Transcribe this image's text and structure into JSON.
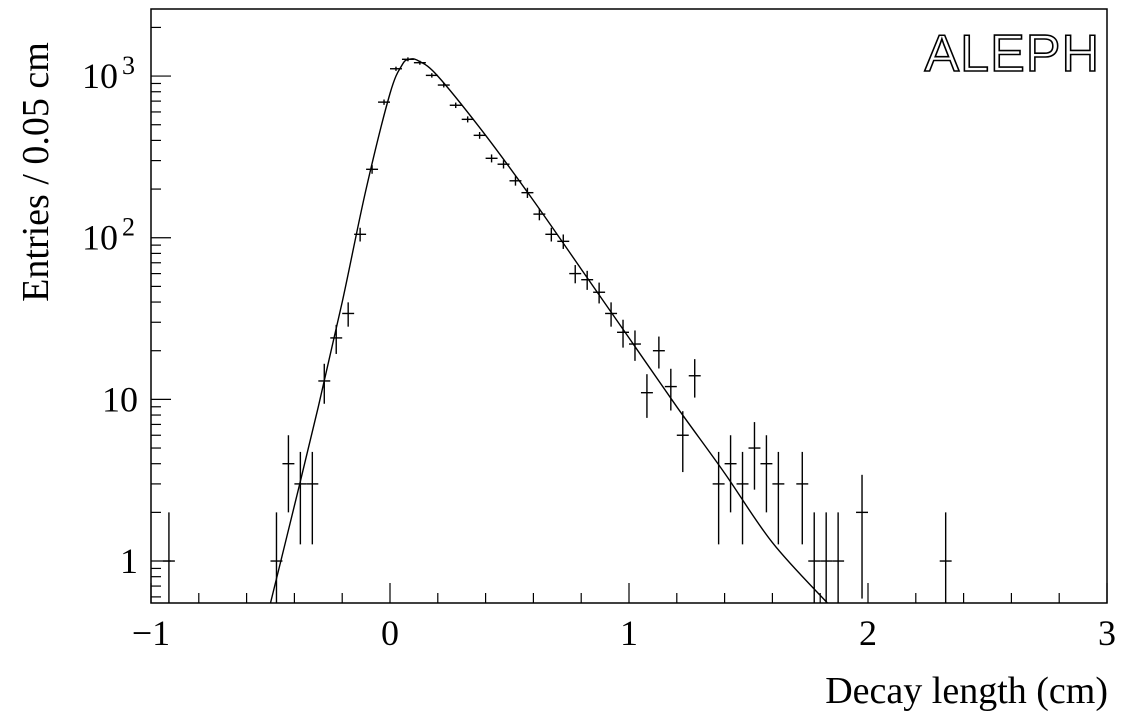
{
  "chart_data": {
    "type": "scatter",
    "title": "",
    "xlabel": "Decay length  (cm)",
    "ylabel": "Entries / 0.05 cm",
    "brand_label": "ALEPH",
    "xlim": [
      -1,
      3
    ],
    "ylim": [
      0.55,
      2600
    ],
    "log_y": true,
    "grid": false,
    "legend": "none",
    "x_ticks": [
      {
        "value": -1,
        "label": "−1"
      },
      {
        "value": 0,
        "label": "0"
      },
      {
        "value": 1,
        "label": "1"
      },
      {
        "value": 2,
        "label": "2"
      },
      {
        "value": 3,
        "label": "3"
      }
    ],
    "y_ticks": [
      {
        "value": 1,
        "base": "1",
        "exp": ""
      },
      {
        "value": 10,
        "base": "10",
        "exp": ""
      },
      {
        "value": 100,
        "base": "10",
        "exp": "2"
      },
      {
        "value": 1000,
        "base": "10",
        "exp": "3"
      }
    ],
    "series": [
      {
        "style": "error-bars",
        "bin_width": 0.05,
        "points": [
          {
            "x": -0.925,
            "y": 1
          },
          {
            "x": -0.475,
            "y": 1
          },
          {
            "x": -0.425,
            "y": 4
          },
          {
            "x": -0.375,
            "y": 3
          },
          {
            "x": -0.325,
            "y": 3
          },
          {
            "x": -0.275,
            "y": 13
          },
          {
            "x": -0.225,
            "y": 24
          },
          {
            "x": -0.175,
            "y": 34
          },
          {
            "x": -0.125,
            "y": 105
          },
          {
            "x": -0.075,
            "y": 265
          },
          {
            "x": -0.025,
            "y": 690
          },
          {
            "x": 0.025,
            "y": 1110
          },
          {
            "x": 0.075,
            "y": 1270
          },
          {
            "x": 0.125,
            "y": 1210
          },
          {
            "x": 0.175,
            "y": 1010
          },
          {
            "x": 0.225,
            "y": 880
          },
          {
            "x": 0.275,
            "y": 660
          },
          {
            "x": 0.325,
            "y": 540
          },
          {
            "x": 0.375,
            "y": 430
          },
          {
            "x": 0.425,
            "y": 310
          },
          {
            "x": 0.475,
            "y": 285
          },
          {
            "x": 0.525,
            "y": 225
          },
          {
            "x": 0.575,
            "y": 190
          },
          {
            "x": 0.625,
            "y": 140
          },
          {
            "x": 0.675,
            "y": 105
          },
          {
            "x": 0.725,
            "y": 95
          },
          {
            "x": 0.775,
            "y": 60
          },
          {
            "x": 0.825,
            "y": 55
          },
          {
            "x": 0.875,
            "y": 46
          },
          {
            "x": 0.925,
            "y": 34
          },
          {
            "x": 0.975,
            "y": 26
          },
          {
            "x": 1.025,
            "y": 22
          },
          {
            "x": 1.075,
            "y": 11
          },
          {
            "x": 1.125,
            "y": 20
          },
          {
            "x": 1.175,
            "y": 12
          },
          {
            "x": 1.225,
            "y": 6
          },
          {
            "x": 1.275,
            "y": 14
          },
          {
            "x": 1.375,
            "y": 3
          },
          {
            "x": 1.425,
            "y": 4
          },
          {
            "x": 1.475,
            "y": 3
          },
          {
            "x": 1.525,
            "y": 5
          },
          {
            "x": 1.575,
            "y": 4
          },
          {
            "x": 1.625,
            "y": 3
          },
          {
            "x": 1.725,
            "y": 3
          },
          {
            "x": 1.775,
            "y": 1
          },
          {
            "x": 1.825,
            "y": 1
          },
          {
            "x": 1.875,
            "y": 1
          },
          {
            "x": 1.975,
            "y": 2
          },
          {
            "x": 2.325,
            "y": 1
          }
        ]
      },
      {
        "style": "line",
        "points": [
          {
            "x": -0.5,
            "y": 0.55
          },
          {
            "x": -0.4,
            "y": 2.2
          },
          {
            "x": -0.3,
            "y": 9
          },
          {
            "x": -0.2,
            "y": 40
          },
          {
            "x": -0.1,
            "y": 200
          },
          {
            "x": 0.0,
            "y": 780
          },
          {
            "x": 0.05,
            "y": 1170
          },
          {
            "x": 0.08,
            "y": 1270
          },
          {
            "x": 0.12,
            "y": 1240
          },
          {
            "x": 0.2,
            "y": 1000
          },
          {
            "x": 0.4,
            "y": 430
          },
          {
            "x": 0.6,
            "y": 170
          },
          {
            "x": 0.8,
            "y": 64
          },
          {
            "x": 1.0,
            "y": 24
          },
          {
            "x": 1.2,
            "y": 9
          },
          {
            "x": 1.4,
            "y": 3.5
          },
          {
            "x": 1.6,
            "y": 1.3
          },
          {
            "x": 1.83,
            "y": 0.55
          }
        ]
      }
    ]
  }
}
